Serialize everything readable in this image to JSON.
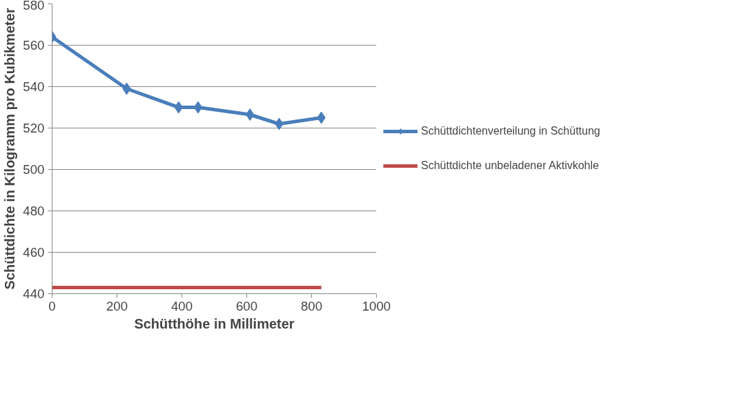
{
  "chart_data": {
    "type": "line",
    "xlabel": "Schütthöhe in Millimeter",
    "ylabel": "Schüttdichte in Kilogramm pro Kubikmeter",
    "xlim": [
      0,
      1000
    ],
    "xticks": [
      0,
      200,
      400,
      600,
      800,
      1000
    ],
    "ylim": [
      440,
      580
    ],
    "yticks": [
      440,
      460,
      480,
      500,
      520,
      540,
      560,
      580
    ],
    "grid": "y",
    "legend": "right",
    "series": [
      {
        "name": "Schüttdichtenverteilung in Schüttung",
        "color": "#4a7ebb",
        "marker": "diamond",
        "x": [
          0,
          230,
          390,
          450,
          610,
          700,
          830
        ],
        "values": [
          564,
          539,
          530,
          530,
          526.5,
          522,
          525
        ]
      },
      {
        "name": "Schüttdichte unbeladener Aktivkohle",
        "color": "#be4b48",
        "marker": "none",
        "x": [
          0,
          830
        ],
        "values": [
          443,
          443
        ]
      }
    ]
  }
}
